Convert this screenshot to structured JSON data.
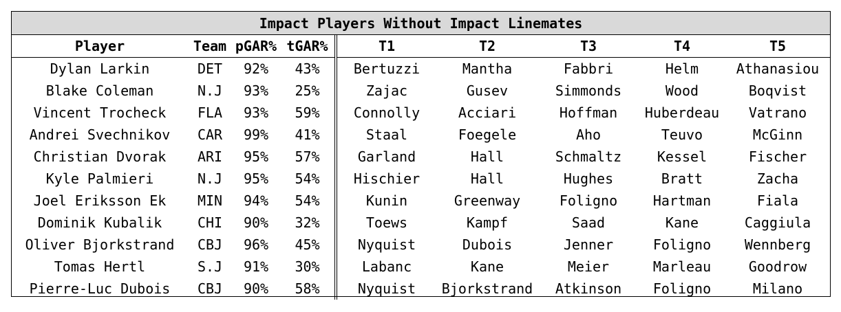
{
  "title": "Impact Players Without Impact Linemates",
  "headers": [
    "Player",
    "Team",
    "pGAR%",
    "tGAR%",
    "T1",
    "T2",
    "T3",
    "T4",
    "T5"
  ],
  "rows": [
    [
      "Dylan Larkin",
      "DET",
      "92%",
      "43%",
      "Bertuzzi",
      "Mantha",
      "Fabbri",
      "Helm",
      "Athanasiou"
    ],
    [
      "Blake Coleman",
      "N.J",
      "93%",
      "25%",
      "Zajac",
      "Gusev",
      "Simmonds",
      "Wood",
      "Boqvist"
    ],
    [
      "Vincent Trocheck",
      "FLA",
      "93%",
      "59%",
      "Connolly",
      "Acciari",
      "Hoffman",
      "Huberdeau",
      "Vatrano"
    ],
    [
      "Andrei Svechnikov",
      "CAR",
      "99%",
      "41%",
      "Staal",
      "Foegele",
      "Aho",
      "Teuvo",
      "McGinn"
    ],
    [
      "Christian Dvorak",
      "ARI",
      "95%",
      "57%",
      "Garland",
      "Hall",
      "Schmaltz",
      "Kessel",
      "Fischer"
    ],
    [
      "Kyle Palmieri",
      "N.J",
      "95%",
      "54%",
      "Hischier",
      "Hall",
      "Hughes",
      "Bratt",
      "Zacha"
    ],
    [
      "Joel Eriksson Ek",
      "MIN",
      "94%",
      "54%",
      "Kunin",
      "Greenway",
      "Foligno",
      "Hartman",
      "Fiala"
    ],
    [
      "Dominik Kubalik",
      "CHI",
      "90%",
      "32%",
      "Toews",
      "Kampf",
      "Saad",
      "Kane",
      "Caggiula"
    ],
    [
      "Oliver Bjorkstrand",
      "CBJ",
      "96%",
      "45%",
      "Nyquist",
      "Dubois",
      "Jenner",
      "Foligno",
      "Wennberg"
    ],
    [
      "Tomas Hertl",
      "S.J",
      "91%",
      "30%",
      "Labanc",
      "Kane",
      "Meier",
      "Marleau",
      "Goodrow"
    ],
    [
      "Pierre-Luc Dubois",
      "CBJ",
      "90%",
      "58%",
      "Nyquist",
      "Bjorkstrand",
      "Atkinson",
      "Foligno",
      "Milano"
    ]
  ]
}
